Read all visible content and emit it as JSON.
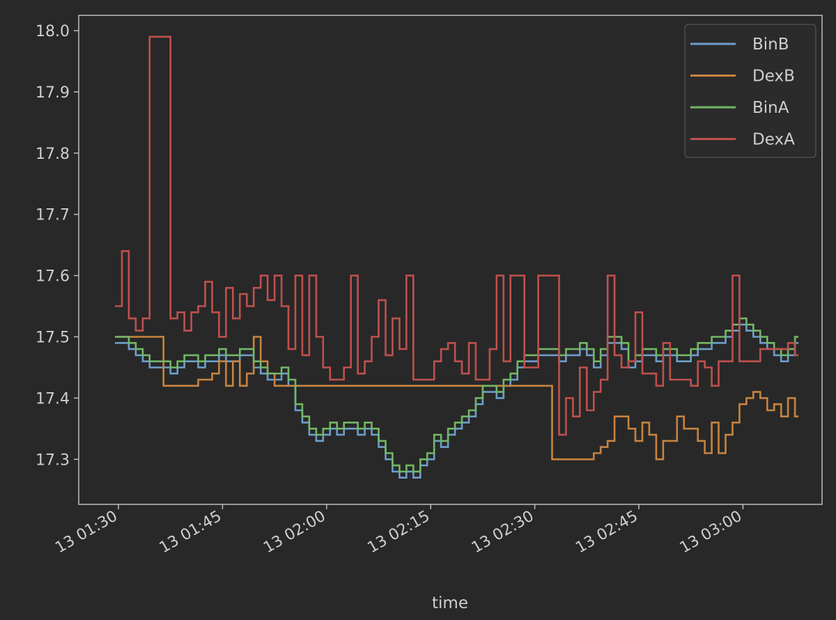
{
  "chart_data": {
    "type": "line",
    "title": "",
    "xlabel": "time",
    "ylabel": "",
    "ylim": [
      17.225,
      18.025
    ],
    "x_start": "01:29",
    "x_step_minutes": 1,
    "x_date_prefix": "13",
    "yticks": [
      "17.3",
      "17.4",
      "17.5",
      "17.6",
      "17.7",
      "17.8",
      "17.9",
      "18.0"
    ],
    "xticks": [
      "13 01:30",
      "13 01:45",
      "13 02:00",
      "13 02:15",
      "13 02:30",
      "13 02:45",
      "13 03:00"
    ],
    "legend_position": "top-right",
    "grid": false,
    "series": [
      {
        "name": "BinB",
        "color": "#6d9ecb",
        "values": [
          17.49,
          17.49,
          17.48,
          17.47,
          17.46,
          17.45,
          17.45,
          17.45,
          17.44,
          17.45,
          17.46,
          17.46,
          17.45,
          17.46,
          17.46,
          17.47,
          17.46,
          17.46,
          17.47,
          17.47,
          17.45,
          17.44,
          17.43,
          17.43,
          17.44,
          17.42,
          17.38,
          17.36,
          17.34,
          17.33,
          17.34,
          17.35,
          17.34,
          17.35,
          17.35,
          17.34,
          17.35,
          17.34,
          17.32,
          17.3,
          17.28,
          17.27,
          17.28,
          17.27,
          17.29,
          17.3,
          17.33,
          17.32,
          17.34,
          17.35,
          17.36,
          17.37,
          17.39,
          17.41,
          17.41,
          17.4,
          17.42,
          17.43,
          17.45,
          17.46,
          17.46,
          17.47,
          17.47,
          17.47,
          17.46,
          17.47,
          17.47,
          17.48,
          17.47,
          17.45,
          17.47,
          17.49,
          17.49,
          17.48,
          17.45,
          17.46,
          17.47,
          17.47,
          17.46,
          17.47,
          17.47,
          17.46,
          17.46,
          17.47,
          17.48,
          17.48,
          17.49,
          17.49,
          17.5,
          17.51,
          17.52,
          17.51,
          17.5,
          17.49,
          17.48,
          17.47,
          17.46,
          17.47,
          17.49
        ]
      },
      {
        "name": "DexB",
        "color": "#c8843f",
        "values": [
          17.5,
          17.5,
          17.5,
          17.5,
          17.5,
          17.5,
          17.5,
          17.42,
          17.42,
          17.42,
          17.42,
          17.42,
          17.43,
          17.43,
          17.44,
          17.46,
          17.42,
          17.46,
          17.42,
          17.44,
          17.5,
          17.46,
          17.44,
          17.42,
          17.42,
          17.42,
          17.42,
          17.42,
          17.42,
          17.42,
          17.42,
          17.42,
          17.42,
          17.42,
          17.42,
          17.42,
          17.42,
          17.42,
          17.42,
          17.42,
          17.42,
          17.42,
          17.42,
          17.42,
          17.42,
          17.42,
          17.42,
          17.42,
          17.42,
          17.42,
          17.42,
          17.42,
          17.42,
          17.42,
          17.42,
          17.42,
          17.42,
          17.42,
          17.42,
          17.42,
          17.42,
          17.42,
          17.42,
          17.3,
          17.3,
          17.3,
          17.3,
          17.3,
          17.3,
          17.31,
          17.32,
          17.33,
          17.37,
          17.37,
          17.35,
          17.33,
          17.36,
          17.34,
          17.3,
          17.33,
          17.33,
          17.37,
          17.35,
          17.35,
          17.33,
          17.31,
          17.36,
          17.31,
          17.34,
          17.36,
          17.39,
          17.4,
          17.41,
          17.4,
          17.38,
          17.39,
          17.37,
          17.4,
          17.37
        ]
      },
      {
        "name": "BinA",
        "color": "#72b866",
        "values": [
          17.5,
          17.5,
          17.49,
          17.48,
          17.47,
          17.46,
          17.46,
          17.46,
          17.45,
          17.46,
          17.47,
          17.47,
          17.46,
          17.47,
          17.47,
          17.48,
          17.47,
          17.47,
          17.48,
          17.48,
          17.46,
          17.45,
          17.44,
          17.44,
          17.45,
          17.43,
          17.39,
          17.37,
          17.35,
          17.34,
          17.35,
          17.36,
          17.35,
          17.36,
          17.36,
          17.35,
          17.36,
          17.35,
          17.33,
          17.31,
          17.29,
          17.28,
          17.29,
          17.28,
          17.3,
          17.31,
          17.34,
          17.33,
          17.35,
          17.36,
          17.37,
          17.38,
          17.4,
          17.42,
          17.42,
          17.41,
          17.43,
          17.44,
          17.46,
          17.47,
          17.47,
          17.48,
          17.48,
          17.48,
          17.47,
          17.48,
          17.48,
          17.49,
          17.48,
          17.46,
          17.48,
          17.5,
          17.5,
          17.49,
          17.46,
          17.47,
          17.48,
          17.48,
          17.47,
          17.48,
          17.48,
          17.47,
          17.47,
          17.48,
          17.49,
          17.49,
          17.5,
          17.5,
          17.51,
          17.52,
          17.53,
          17.52,
          17.51,
          17.5,
          17.49,
          17.48,
          17.47,
          17.48,
          17.5
        ]
      },
      {
        "name": "DexA",
        "color": "#c0504d",
        "values": [
          17.55,
          17.64,
          17.53,
          17.51,
          17.53,
          17.99,
          17.99,
          17.99,
          17.53,
          17.54,
          17.51,
          17.54,
          17.55,
          17.59,
          17.54,
          17.5,
          17.58,
          17.53,
          17.57,
          17.55,
          17.58,
          17.6,
          17.56,
          17.6,
          17.55,
          17.48,
          17.6,
          17.47,
          17.6,
          17.5,
          17.45,
          17.43,
          17.43,
          17.45,
          17.6,
          17.44,
          17.46,
          17.5,
          17.56,
          17.47,
          17.53,
          17.48,
          17.6,
          17.43,
          17.43,
          17.43,
          17.46,
          17.48,
          17.49,
          17.46,
          17.44,
          17.49,
          17.43,
          17.43,
          17.48,
          17.6,
          17.46,
          17.6,
          17.6,
          17.45,
          17.45,
          17.6,
          17.6,
          17.6,
          17.34,
          17.4,
          17.37,
          17.45,
          17.38,
          17.41,
          17.43,
          17.6,
          17.47,
          17.45,
          17.46,
          17.54,
          17.44,
          17.44,
          17.42,
          17.49,
          17.43,
          17.43,
          17.43,
          17.42,
          17.46,
          17.45,
          17.42,
          17.46,
          17.46,
          17.6,
          17.46,
          17.46,
          17.46,
          17.48,
          17.48,
          17.48,
          17.48,
          17.49,
          17.47
        ]
      }
    ]
  }
}
